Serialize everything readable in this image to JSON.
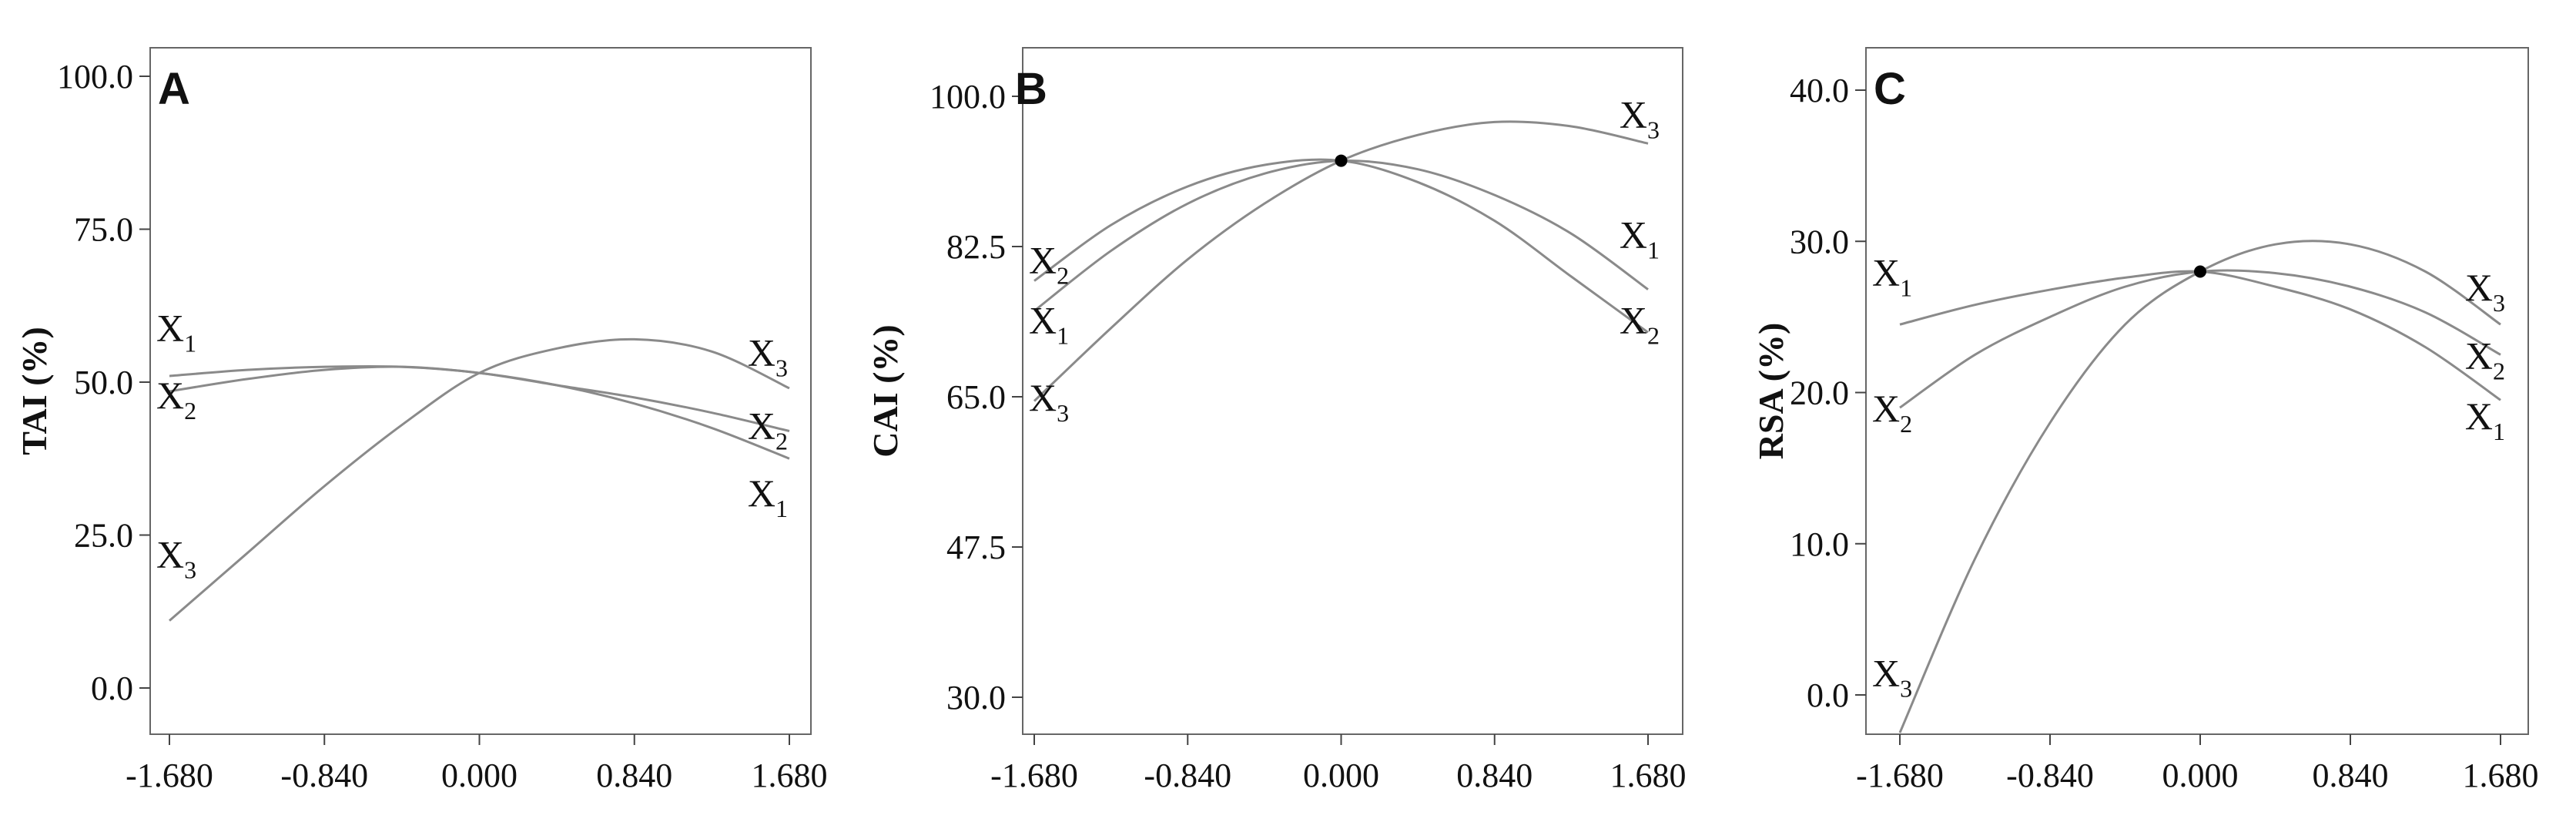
{
  "chart_data": [
    {
      "type": "line",
      "panel": "A",
      "ylabel": "TAI (%)",
      "xlabel": "",
      "x_ticks": [
        "-1.680",
        "-0.840",
        "0.000",
        "0.840",
        "1.680"
      ],
      "y_ticks": [
        "0.0",
        "25.0",
        "50.0",
        "75.0",
        "100.0"
      ],
      "xlim": [
        -1.68,
        1.68
      ],
      "ylim": [
        0,
        100
      ],
      "reference_point": null,
      "series": [
        {
          "name": "X1",
          "x": [
            -1.68,
            -1.26,
            -0.84,
            -0.42,
            0,
            0.42,
            0.84,
            1.26,
            1.68
          ],
          "y": [
            51,
            52,
            52.5,
            52.5,
            51.5,
            49.5,
            46.5,
            42.5,
            37.5
          ]
        },
        {
          "name": "X2",
          "x": [
            -1.68,
            -1.26,
            -0.84,
            -0.42,
            0,
            0.42,
            0.84,
            1.26,
            1.68
          ],
          "y": [
            48.5,
            50.5,
            52,
            52.5,
            51.5,
            49.5,
            47.5,
            45,
            42
          ]
        },
        {
          "name": "X3",
          "x": [
            -1.68,
            -1.26,
            -0.84,
            -0.42,
            0,
            0.42,
            0.84,
            1.26,
            1.68
          ],
          "y": [
            11,
            22,
            33,
            43,
            51.5,
            55.5,
            57,
            55,
            49
          ]
        }
      ],
      "labels": [
        {
          "base": "X",
          "sub": "1",
          "side": "left",
          "y": 59
        },
        {
          "base": "X",
          "sub": "2",
          "side": "left",
          "y": 48
        },
        {
          "base": "X",
          "sub": "3",
          "side": "left",
          "y": 22
        },
        {
          "base": "X",
          "sub": "3",
          "side": "right",
          "y": 55
        },
        {
          "base": "X",
          "sub": "2",
          "side": "right",
          "y": 43
        },
        {
          "base": "X",
          "sub": "1",
          "side": "right",
          "y": 32
        }
      ]
    },
    {
      "type": "line",
      "panel": "B",
      "ylabel": "CAI (%)",
      "xlabel": "",
      "x_ticks": [
        "-1.680",
        "-0.840",
        "0.000",
        "0.840",
        "1.680"
      ],
      "y_ticks": [
        "30.0",
        "47.5",
        "65.0",
        "82.5",
        "100.0"
      ],
      "xlim": [
        -1.68,
        1.68
      ],
      "ylim": [
        30,
        100
      ],
      "reference_point": {
        "x": 0,
        "y": 92.5
      },
      "series": [
        {
          "name": "X1",
          "x": [
            -1.68,
            -1.26,
            -0.84,
            -0.42,
            0,
            0.42,
            0.84,
            1.26,
            1.68
          ],
          "y": [
            75,
            82,
            87.5,
            91,
            92.5,
            91.5,
            88.5,
            84,
            77.5
          ]
        },
        {
          "name": "X2",
          "x": [
            -1.68,
            -1.26,
            -0.84,
            -0.42,
            0,
            0.42,
            0.84,
            1.26,
            1.68
          ],
          "y": [
            78.5,
            85,
            89.5,
            92,
            92.5,
            90,
            85.5,
            79,
            72.5
          ]
        },
        {
          "name": "X3",
          "x": [
            -1.68,
            -1.26,
            -0.84,
            -0.42,
            0,
            0.42,
            0.84,
            1.26,
            1.68
          ],
          "y": [
            64.5,
            73,
            81,
            87.5,
            92.5,
            95.5,
            97,
            96.5,
            94.5
          ]
        }
      ],
      "labels": [
        {
          "base": "X",
          "sub": "2",
          "side": "left",
          "y": 81
        },
        {
          "base": "X",
          "sub": "1",
          "side": "left",
          "y": 74
        },
        {
          "base": "X",
          "sub": "3",
          "side": "left",
          "y": 65
        },
        {
          "base": "X",
          "sub": "3",
          "side": "right",
          "y": 98
        },
        {
          "base": "X",
          "sub": "1",
          "side": "right",
          "y": 84
        },
        {
          "base": "X",
          "sub": "2",
          "side": "right",
          "y": 74
        }
      ]
    },
    {
      "type": "line",
      "panel": "C",
      "ylabel": "RSA (%)",
      "xlabel": "",
      "x_ticks": [
        "-1.680",
        "-0.840",
        "0.000",
        "0.840",
        "1.680"
      ],
      "y_ticks": [
        "0.0",
        "10.0",
        "20.0",
        "30.0",
        "40.0"
      ],
      "xlim": [
        -1.68,
        1.68
      ],
      "ylim": [
        0,
        40
      ],
      "reference_point": {
        "x": 0,
        "y": 28
      },
      "series": [
        {
          "name": "X1",
          "x": [
            -1.68,
            -1.26,
            -0.84,
            -0.42,
            0,
            0.42,
            0.84,
            1.26,
            1.68
          ],
          "y": [
            24.5,
            25.8,
            26.8,
            27.6,
            28,
            27,
            25.5,
            23,
            19.5
          ]
        },
        {
          "name": "X2",
          "x": [
            -1.68,
            -1.26,
            -0.84,
            -0.42,
            0,
            0.42,
            0.84,
            1.26,
            1.68
          ],
          "y": [
            19,
            22.5,
            25,
            27,
            28,
            27.9,
            27,
            25.3,
            22.5
          ]
        },
        {
          "name": "X3",
          "x": [
            -1.68,
            -1.26,
            -0.84,
            -0.42,
            0,
            0.42,
            0.84,
            1.26,
            1.68
          ],
          "y": [
            -2.5,
            9,
            18,
            24.5,
            28,
            29.8,
            29.8,
            28,
            24.5
          ]
        }
      ],
      "labels": [
        {
          "base": "X",
          "sub": "1",
          "side": "left",
          "y": 28
        },
        {
          "base": "X",
          "sub": "2",
          "side": "left",
          "y": 19
        },
        {
          "base": "X",
          "sub": "3",
          "side": "left",
          "y": 1.5
        },
        {
          "base": "X",
          "sub": "3",
          "side": "right",
          "y": 27
        },
        {
          "base": "X",
          "sub": "2",
          "side": "right",
          "y": 22.5
        },
        {
          "base": "X",
          "sub": "1",
          "side": "right",
          "y": 18.5
        }
      ]
    }
  ]
}
